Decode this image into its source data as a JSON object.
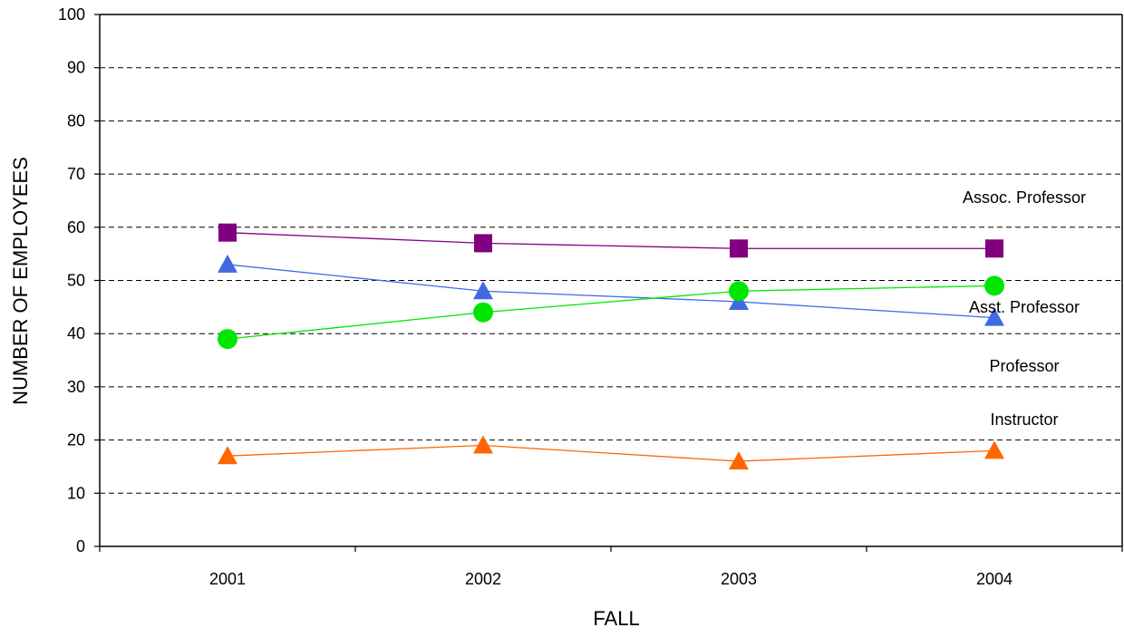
{
  "chart_data": {
    "type": "line",
    "title": "",
    "xlabel": "FALL",
    "ylabel": "NUMBER OF EMPLOYEES",
    "categories": [
      "2001",
      "2002",
      "2003",
      "2004"
    ],
    "ylim": [
      0,
      100
    ],
    "yticks": [
      0,
      10,
      20,
      30,
      40,
      50,
      60,
      70,
      80,
      90,
      100
    ],
    "grid": "horizontal-dashed",
    "legend": "inline-right",
    "series": [
      {
        "name": "Assoc. Professor",
        "values": [
          59,
          57,
          56,
          56
        ],
        "color": "#800080",
        "marker": "square"
      },
      {
        "name": "Asst. Professor",
        "values": [
          53,
          48,
          46,
          43
        ],
        "color": "#4169E1",
        "marker": "triangle"
      },
      {
        "name": "Professor",
        "values": [
          39,
          44,
          48,
          49
        ],
        "color": "#00E600",
        "marker": "circle"
      },
      {
        "name": "Instructor",
        "values": [
          17,
          19,
          16,
          18
        ],
        "color": "#FF6600",
        "marker": "triangle"
      }
    ]
  }
}
